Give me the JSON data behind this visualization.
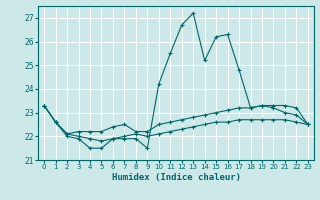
{
  "xlabel": "Humidex (Indice chaleur)",
  "bg_color": "#cce8e8",
  "grid_color": "#ffffff",
  "line_color": "#006868",
  "xlim": [
    -0.5,
    23.5
  ],
  "ylim": [
    21,
    27.5
  ],
  "yticks": [
    21,
    22,
    23,
    24,
    25,
    26,
    27
  ],
  "xticks": [
    0,
    1,
    2,
    3,
    4,
    5,
    6,
    7,
    8,
    9,
    10,
    11,
    12,
    13,
    14,
    15,
    16,
    17,
    18,
    19,
    20,
    21,
    22,
    23
  ],
  "series": [
    [
      23.3,
      22.6,
      22.0,
      21.9,
      21.5,
      21.5,
      21.9,
      21.9,
      21.9,
      21.5,
      24.2,
      25.5,
      26.7,
      27.2,
      25.2,
      26.2,
      26.3,
      24.8,
      23.2,
      23.3,
      23.2,
      23.0,
      22.9,
      22.5
    ],
    [
      23.3,
      22.6,
      22.1,
      22.2,
      22.2,
      22.2,
      22.4,
      22.5,
      22.2,
      22.2,
      22.5,
      22.6,
      22.7,
      22.8,
      22.9,
      23.0,
      23.1,
      23.2,
      23.2,
      23.3,
      23.3,
      23.3,
      23.2,
      22.5
    ],
    [
      23.3,
      22.6,
      22.1,
      22.0,
      21.9,
      21.8,
      21.9,
      22.0,
      22.1,
      22.0,
      22.1,
      22.2,
      22.3,
      22.4,
      22.5,
      22.6,
      22.6,
      22.7,
      22.7,
      22.7,
      22.7,
      22.7,
      22.6,
      22.5
    ]
  ]
}
